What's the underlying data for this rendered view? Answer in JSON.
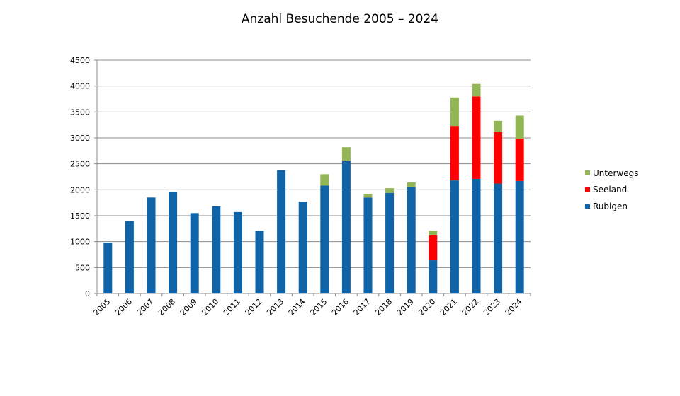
{
  "chart_data": {
    "type": "bar",
    "stacked": true,
    "title": "Anzahl Besuchende 2005 – 2024",
    "xlabel": "",
    "ylabel": "",
    "ylim": [
      0,
      4500
    ],
    "yticks": [
      0,
      500,
      1000,
      1500,
      2000,
      2500,
      3000,
      3500,
      4000,
      4500
    ],
    "grid": true,
    "legend_position": "right",
    "categories": [
      "2005",
      "2006",
      "2007",
      "2008",
      "2009",
      "2010",
      "2011",
      "2012",
      "2013",
      "2014",
      "2015",
      "2016",
      "2017",
      "2018",
      "2019",
      "2020",
      "2021",
      "2022",
      "2023",
      "2024"
    ],
    "series": [
      {
        "name": "Rubigen",
        "color": "#0f63a6",
        "values": [
          980,
          1400,
          1850,
          1960,
          1550,
          1680,
          1570,
          1210,
          2380,
          1770,
          2080,
          2550,
          1850,
          1940,
          2060,
          640,
          2180,
          2210,
          2120,
          2170
        ]
      },
      {
        "name": "Seeland",
        "color": "#ff0000",
        "values": [
          0,
          0,
          0,
          0,
          0,
          0,
          0,
          0,
          0,
          0,
          0,
          0,
          0,
          0,
          0,
          480,
          1050,
          1590,
          990,
          820
        ]
      },
      {
        "name": "Unterwegs",
        "color": "#92b555",
        "values": [
          0,
          0,
          0,
          0,
          0,
          0,
          0,
          0,
          0,
          0,
          220,
          270,
          70,
          90,
          80,
          90,
          550,
          240,
          220,
          440
        ]
      }
    ]
  }
}
